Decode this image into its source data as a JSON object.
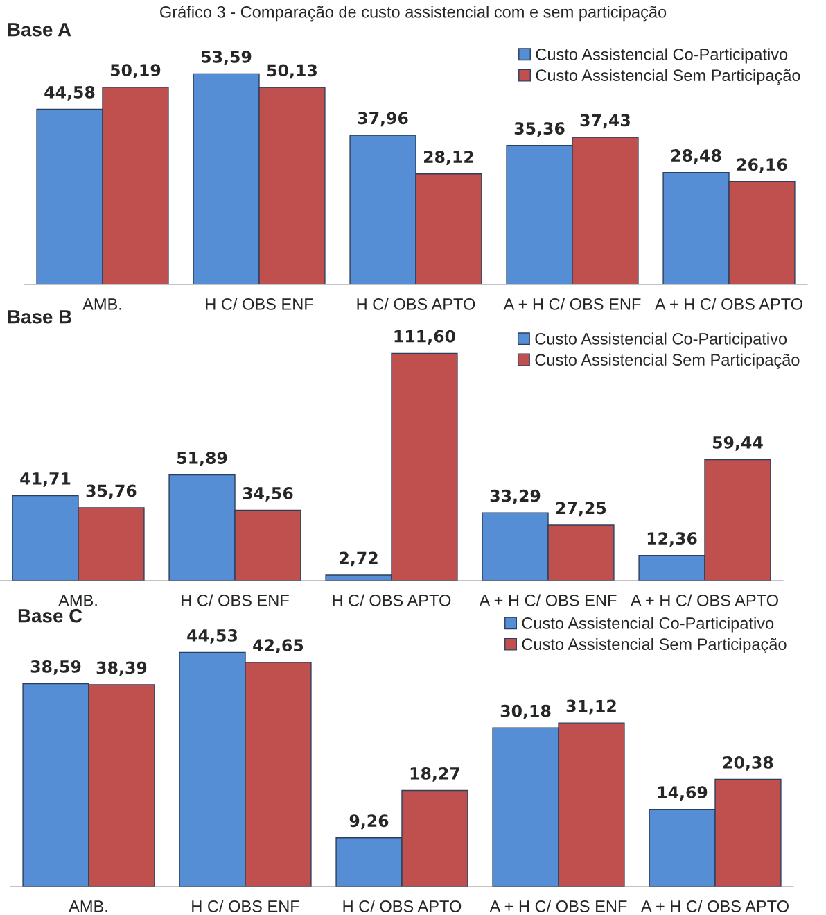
{
  "chart_data": [
    {
      "type": "bar",
      "title": "Base A",
      "annotations": [
        "Gráfico 3 - Comparação de custo assistencial com e sem participação"
      ],
      "categories": [
        "AMB.",
        "H C/ OBS ENF",
        "H C/ OBS APTO",
        "A + H C/ OBS ENF",
        "A + H C/ OBS APTO"
      ],
      "series": [
        {
          "name": "Custo Assistencial Co-Participativo",
          "color": "#558ed5",
          "values": [
            44.58,
            53.59,
            37.96,
            35.36,
            28.48
          ],
          "value_labels": [
            "44,58",
            "53,59",
            "37,96",
            "35,36",
            "28,48"
          ]
        },
        {
          "name": "Custo Assistencial Sem Participação",
          "color": "#c0504d",
          "values": [
            50.19,
            50.13,
            28.12,
            37.43,
            26.16
          ],
          "value_labels": [
            "50,19",
            "50,13",
            "28,12",
            "37,43",
            "26,16"
          ]
        }
      ],
      "legend": "top right",
      "grid": false
    },
    {
      "type": "bar",
      "title": "Base B",
      "categories": [
        "AMB.",
        "H C/ OBS ENF",
        "H C/ OBS APTO",
        "A + H C/ OBS ENF",
        "A + H C/ OBS APTO"
      ],
      "series": [
        {
          "name": "Custo Assistencial Co-Participativo",
          "color": "#558ed5",
          "values": [
            41.71,
            51.89,
            2.72,
            33.29,
            12.36
          ],
          "value_labels": [
            "41,71",
            "51,89",
            "2,72",
            "33,29",
            "12,36"
          ]
        },
        {
          "name": "Custo Assistencial Sem Participação",
          "color": "#c0504d",
          "values": [
            35.76,
            34.56,
            111.6,
            27.25,
            59.44
          ],
          "value_labels": [
            "35,76",
            "34,56",
            "111,60",
            "27,25",
            "59,44"
          ]
        }
      ],
      "legend": "top right",
      "grid": false
    },
    {
      "type": "bar",
      "title": "Base C",
      "categories": [
        "AMB.",
        "H C/ OBS ENF",
        "H C/ OBS APTO",
        "A + H C/ OBS ENF",
        "A + H C/ OBS APTO"
      ],
      "series": [
        {
          "name": "Custo Assistencial Co-Participativo",
          "color": "#558ed5",
          "values": [
            38.59,
            44.53,
            9.26,
            30.18,
            14.69
          ],
          "value_labels": [
            "38,59",
            "44,53",
            "9,26",
            "30,18",
            "14,69"
          ]
        },
        {
          "name": "Custo Assistencial Sem Participação",
          "color": "#c0504d",
          "values": [
            38.39,
            42.65,
            18.27,
            31.12,
            20.38
          ],
          "value_labels": [
            "38,39",
            "42,65",
            "18,27",
            "31,12",
            "20,38"
          ]
        }
      ],
      "legend": "top right",
      "grid": false
    }
  ]
}
